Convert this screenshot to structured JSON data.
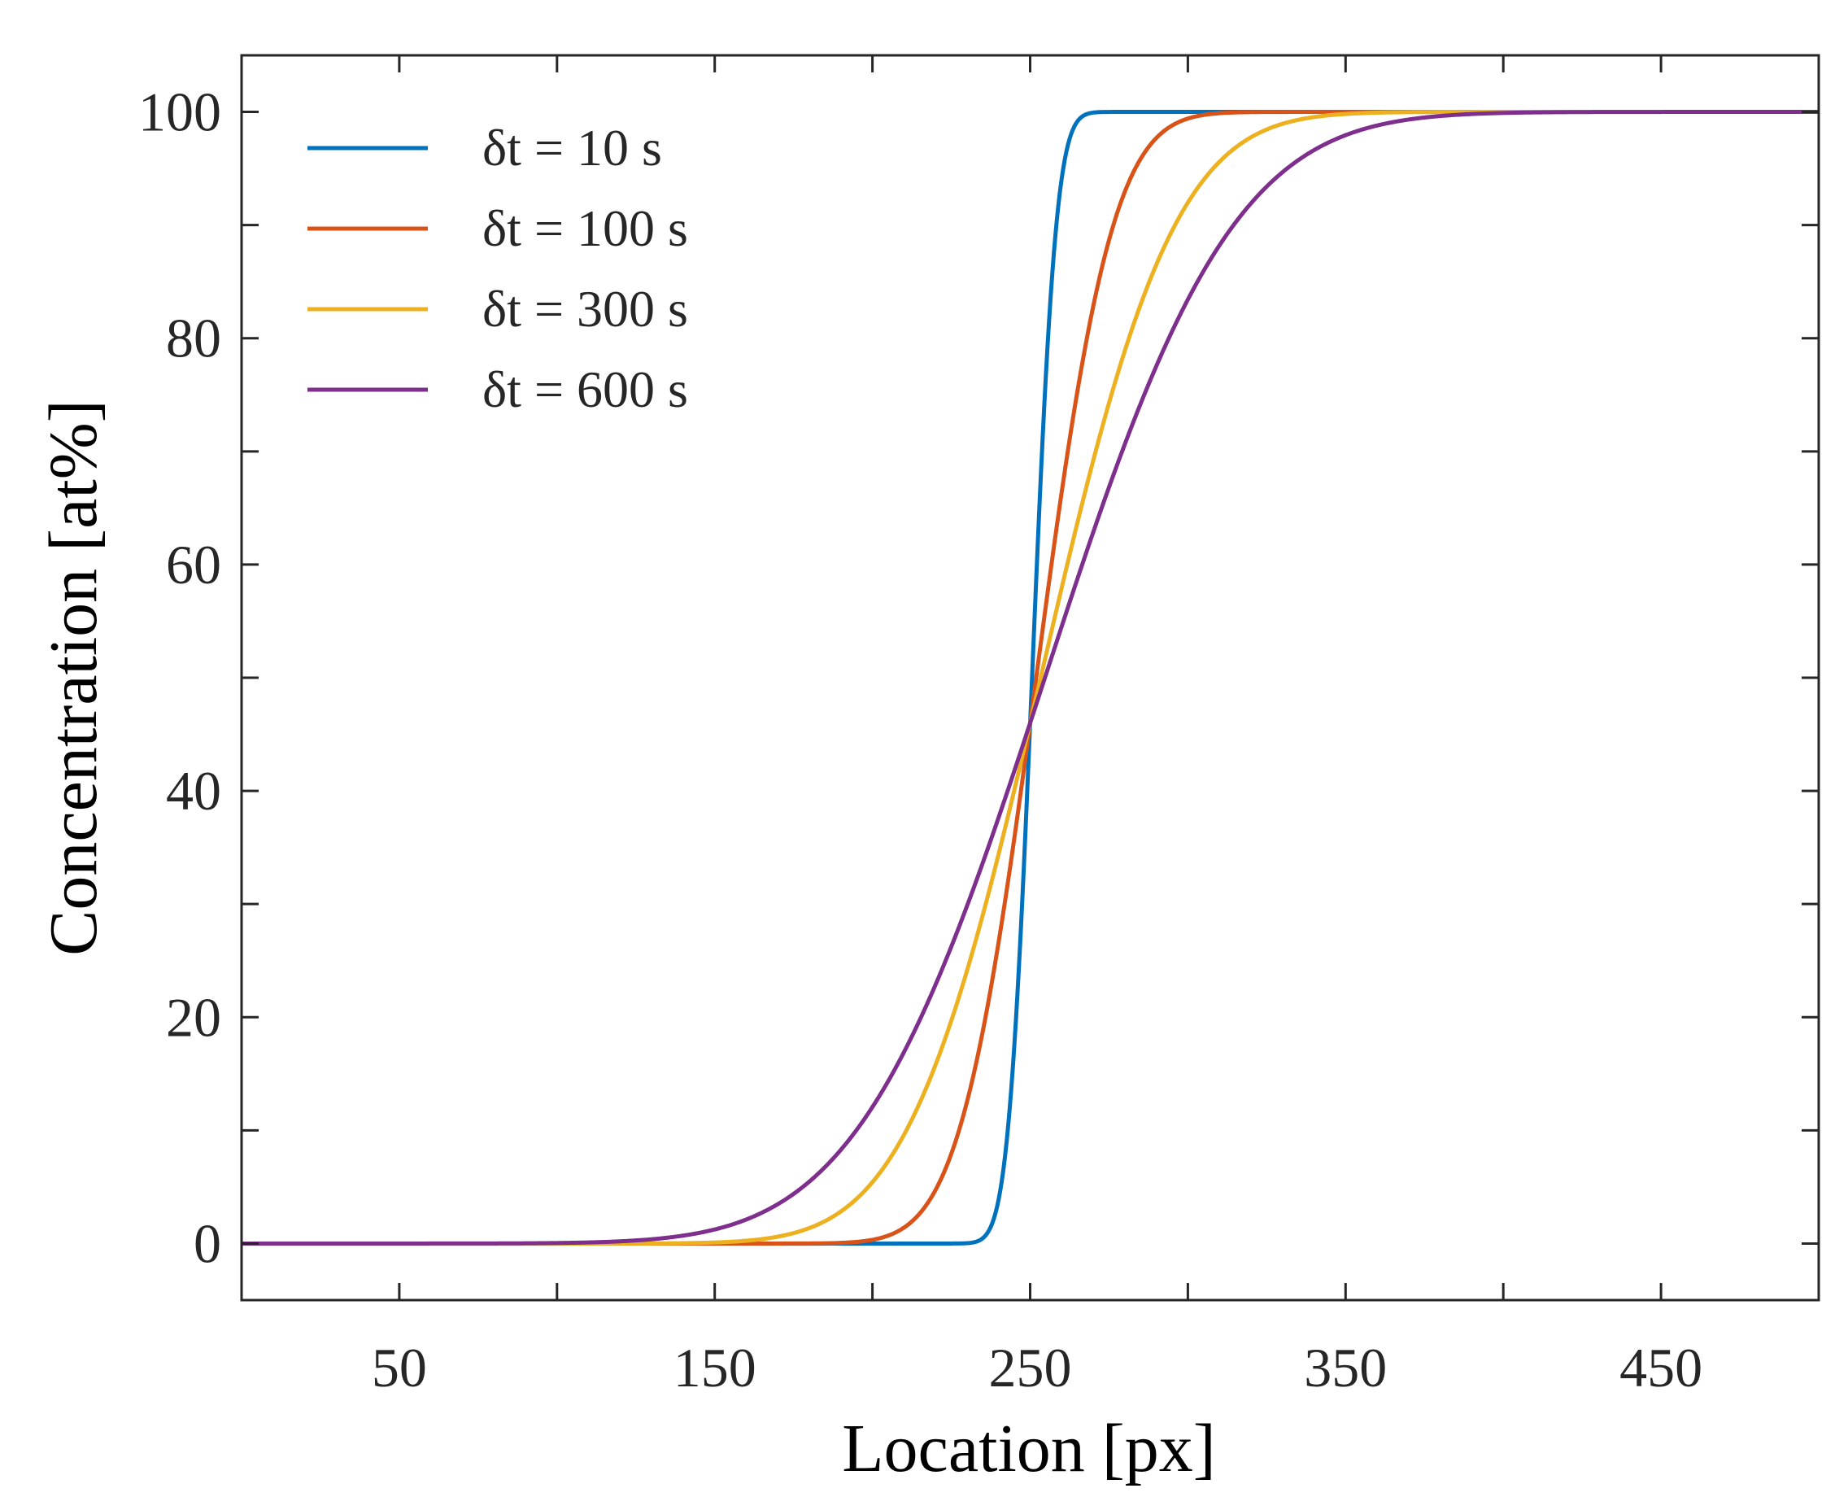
{
  "chart_data": {
    "type": "line",
    "title": "",
    "xlabel": "Location [px]",
    "ylabel": "Concentration [at%]",
    "xlim": [
      0,
      500
    ],
    "ylim": [
      -5,
      105
    ],
    "xticks": [
      50,
      100,
      150,
      200,
      250,
      300,
      350,
      400,
      450
    ],
    "xtick_labels": [
      "50",
      "",
      "150",
      "",
      "250",
      "",
      "350",
      "",
      "450"
    ],
    "yticks": [
      0,
      10,
      20,
      30,
      40,
      50,
      60,
      70,
      80,
      90,
      100
    ],
    "ytick_labels": [
      "0",
      "",
      "20",
      "",
      "40",
      "",
      "60",
      "",
      "80",
      "",
      "100"
    ],
    "grid": false,
    "legend_position": "top-left",
    "profile": {
      "model": "erf diffusion profile",
      "center_x": 250,
      "low": 0,
      "high": 100,
      "crossing_y": 46
    },
    "series": [
      {
        "name": "δt = 10 s",
        "color": "#0072BD",
        "half_width": 8.5
      },
      {
        "name": "δt = 100 s",
        "color": "#D95319",
        "half_width": 27
      },
      {
        "name": "δt = 300 s",
        "color": "#EDB120",
        "half_width": 47
      },
      {
        "name": "δt = 600 s",
        "color": "#7E2F8E",
        "half_width": 66
      }
    ]
  }
}
